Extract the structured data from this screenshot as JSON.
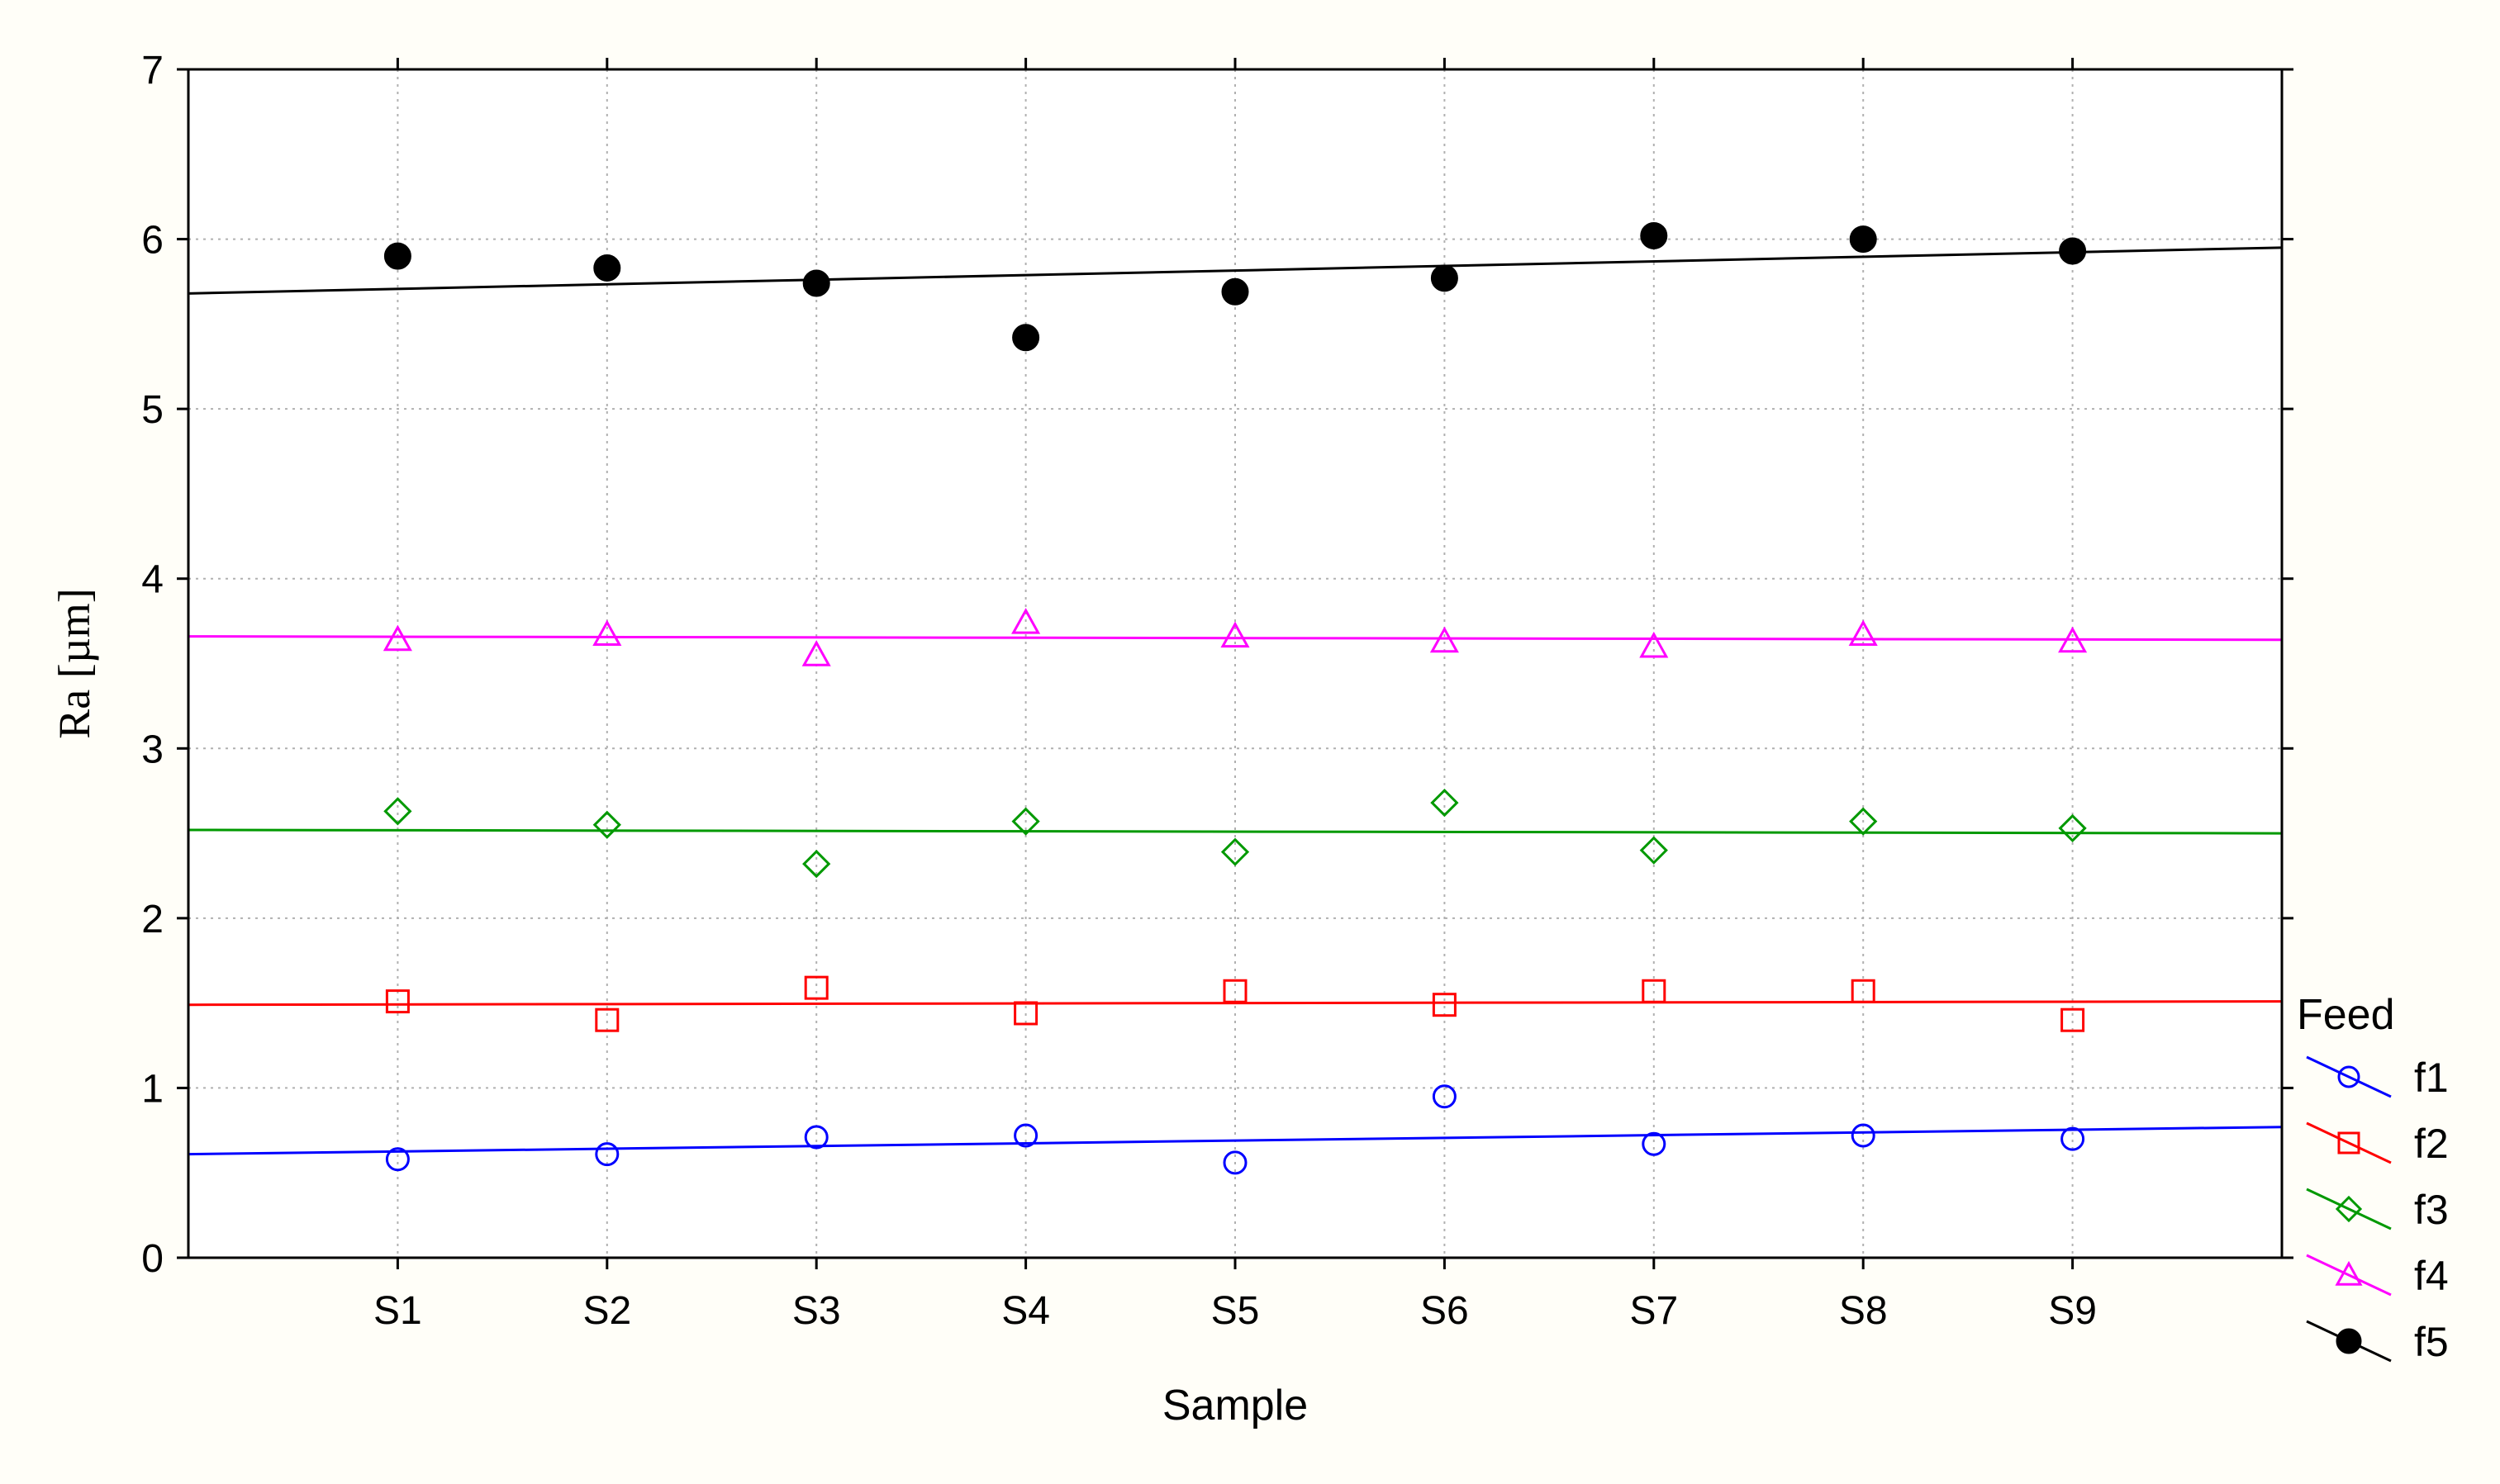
{
  "colors": {
    "background": "#fffef8",
    "plot_background": "#ffffff",
    "grid": "#b0b0b0",
    "axis": "#000000"
  },
  "chart_data": {
    "type": "scatter",
    "title": "",
    "xlabel": "Sample",
    "ylabel": "Ra [µm]",
    "categories": [
      "S1",
      "S2",
      "S3",
      "S4",
      "S5",
      "S6",
      "S7",
      "S8",
      "S9"
    ],
    "xlim": [
      0,
      10
    ],
    "ylim": [
      0,
      7
    ],
    "yticks": [
      "0",
      "1",
      "2",
      "3",
      "4",
      "5",
      "6",
      "7"
    ],
    "grid": true,
    "legend_title": "Feed",
    "legend_position": "right",
    "series": [
      {
        "name": "f1",
        "color": "#0000ff",
        "marker": "circle-open",
        "values": [
          0.58,
          0.61,
          0.71,
          0.72,
          0.56,
          0.95,
          0.67,
          0.72,
          0.7
        ],
        "fit": [
          0.61,
          0.77
        ]
      },
      {
        "name": "f2",
        "color": "#ff0000",
        "marker": "square-open",
        "values": [
          1.51,
          1.4,
          1.59,
          1.44,
          1.57,
          1.49,
          1.57,
          1.57,
          1.4
        ],
        "fit": [
          1.49,
          1.51
        ]
      },
      {
        "name": "f3",
        "color": "#009900",
        "marker": "diamond-open",
        "values": [
          2.63,
          2.55,
          2.32,
          2.57,
          2.39,
          2.68,
          2.4,
          2.57,
          2.53
        ],
        "fit": [
          2.52,
          2.5
        ]
      },
      {
        "name": "f4",
        "color": "#ff00ff",
        "marker": "triangle-open",
        "values": [
          3.64,
          3.67,
          3.55,
          3.74,
          3.66,
          3.63,
          3.6,
          3.67,
          3.63
        ],
        "fit": [
          3.66,
          3.64
        ]
      },
      {
        "name": "f5",
        "color": "#000000",
        "marker": "circle-filled",
        "values": [
          5.9,
          5.83,
          5.74,
          5.42,
          5.69,
          5.77,
          6.02,
          6.0,
          5.93
        ],
        "fit": [
          5.68,
          5.95
        ]
      }
    ]
  }
}
